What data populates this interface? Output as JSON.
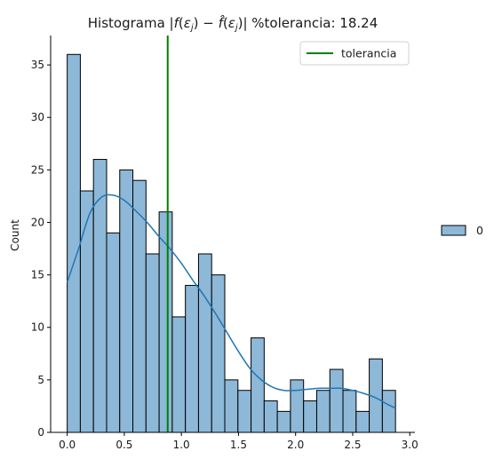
{
  "chart_data": {
    "type": "bar",
    "title": "Histograma |f(ε_j) − f̂(ε_j)| %tolerancia: 18.24",
    "title_parts": {
      "prefix": "Histograma ",
      "suffix": " %tolerancia: 18.24"
    },
    "xlabel": "",
    "ylabel": "Count",
    "xlim": [
      -0.145,
      3.045
    ],
    "ylim": [
      0,
      37.8
    ],
    "x_ticks": [
      0.0,
      0.5,
      1.0,
      1.5,
      2.0,
      2.5,
      3.0
    ],
    "x_tick_labels": [
      "0.0",
      "0.5",
      "1.0",
      "1.5",
      "2.0",
      "2.5",
      "3.0"
    ],
    "y_ticks": [
      0,
      5,
      10,
      15,
      20,
      25,
      30,
      35
    ],
    "y_tick_labels": [
      "0",
      "5",
      "10",
      "15",
      "20",
      "25",
      "30",
      "35"
    ],
    "bin_start": 0.0,
    "bin_width": 0.115,
    "counts": [
      36,
      23,
      26,
      19,
      25,
      24,
      17,
      21,
      11,
      14,
      17,
      15,
      5,
      4,
      9,
      3,
      2,
      5,
      3,
      4,
      6,
      4,
      2,
      7,
      4
    ],
    "kde": {
      "x": [
        0.0,
        0.1,
        0.2,
        0.3,
        0.4,
        0.5,
        0.6,
        0.7,
        0.8,
        0.9,
        1.0,
        1.1,
        1.2,
        1.3,
        1.4,
        1.5,
        1.6,
        1.7,
        1.8,
        1.9,
        2.0,
        2.1,
        2.2,
        2.3,
        2.4,
        2.5,
        2.6,
        2.7,
        2.8,
        2.875
      ],
      "y": [
        14.3,
        17.5,
        20.9,
        22.4,
        22.6,
        22.1,
        21.1,
        20.0,
        18.7,
        17.5,
        16.1,
        14.5,
        13.0,
        11.3,
        9.5,
        7.7,
        6.1,
        5.0,
        4.3,
        4.0,
        4.0,
        4.1,
        4.2,
        4.2,
        4.2,
        4.0,
        3.7,
        3.3,
        2.7,
        2.3
      ]
    },
    "vline": {
      "x": 0.88,
      "name": "tolerancia",
      "color": "#008000"
    },
    "legends": [
      {
        "label": "tolerancia",
        "kind": "line",
        "color": "#008000",
        "placement": "upper-right"
      },
      {
        "label": "0",
        "kind": "patch",
        "color": "#8db8d8",
        "placement": "outside-right"
      }
    ],
    "colors": {
      "bar_fill": "#8db8d8",
      "bar_edge": "#000000",
      "kde_line": "#1f77b4",
      "tolerance_line": "#008000"
    },
    "grid": false
  }
}
